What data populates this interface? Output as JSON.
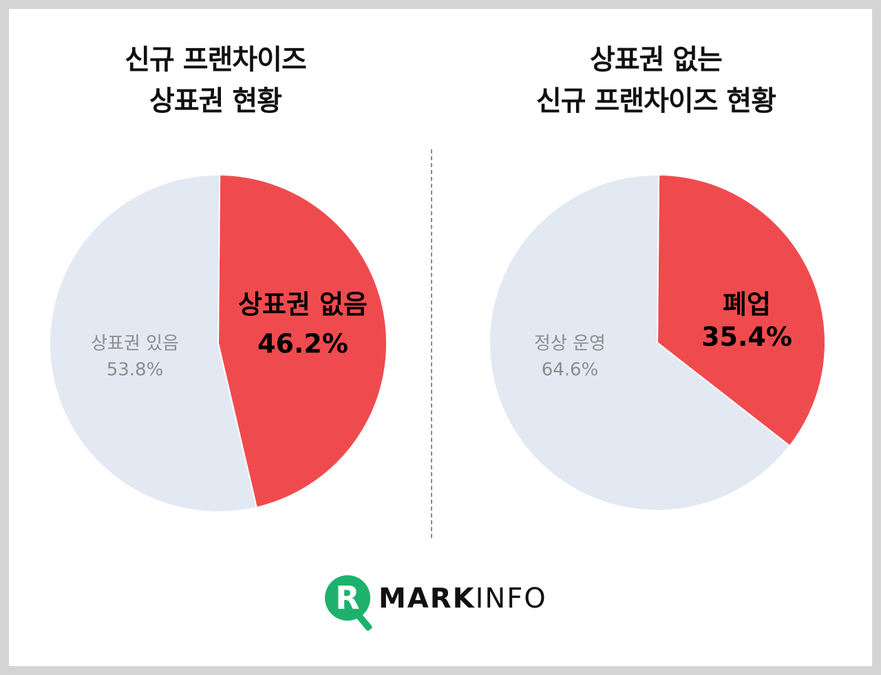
{
  "colors": {
    "highlight": "#ef4b4e",
    "base": "#e2e9f3",
    "logo_green": "#1eb16d"
  },
  "chart_data": [
    {
      "type": "pie",
      "title": [
        "신규 프랜차이즈",
        "상표권 현황"
      ],
      "slices": [
        {
          "label": "상표권 없음",
          "value": 46.2,
          "display": "46.2%",
          "color": "#ef4b4e",
          "emphasis": true
        },
        {
          "label": "상표권 있음",
          "value": 53.8,
          "display": "53.8%",
          "color": "#e2e9f3",
          "emphasis": false
        }
      ]
    },
    {
      "type": "pie",
      "title": [
        "상표권 없는",
        "신규 프랜차이즈 현황"
      ],
      "slices": [
        {
          "label": "폐업",
          "value": 35.4,
          "display": "35.4%",
          "color": "#ef4b4e",
          "emphasis": true
        },
        {
          "label": "정상 운영",
          "value": 64.6,
          "display": "64.6%",
          "color": "#e2e9f3",
          "emphasis": false
        }
      ]
    }
  ],
  "logo": {
    "letter": "R",
    "word_bold": "MARK",
    "word_light": "INFO"
  }
}
